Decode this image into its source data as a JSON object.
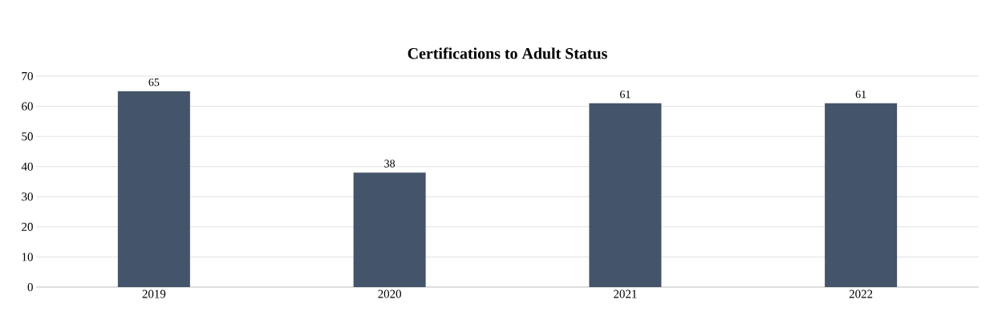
{
  "chart_data": {
    "type": "bar",
    "title": "Certifications to Adult Status",
    "categories": [
      "2019",
      "2020",
      "2021",
      "2022"
    ],
    "values": [
      65,
      38,
      61,
      61
    ],
    "color": "#44546a",
    "ylim": [
      0,
      70
    ],
    "yticks": [
      0,
      10,
      20,
      30,
      40,
      50,
      60,
      70
    ],
    "grid": "y",
    "data_labels": true
  }
}
